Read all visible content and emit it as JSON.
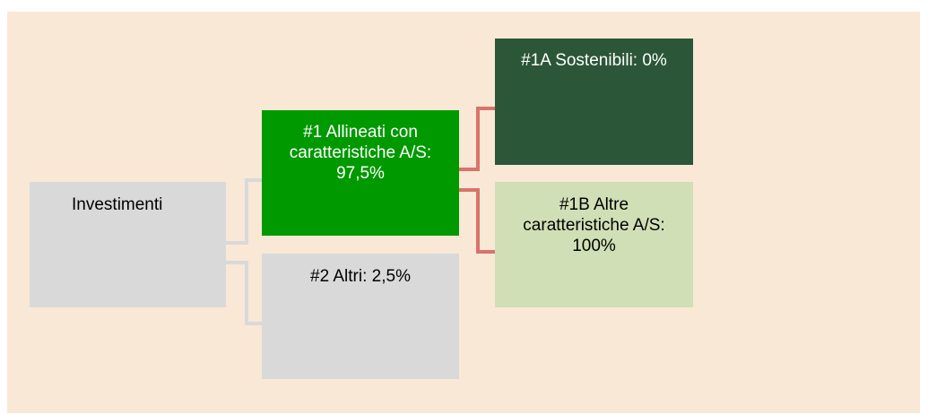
{
  "nodes": [
    {
      "label": "Investimenti"
    },
    {
      "label": "#1 Allineati con caratteristiche A/S: 97,5%"
    },
    {
      "label": "#2 Altri: 2,5%"
    },
    {
      "label": "#1A Sostenibili: 0%"
    },
    {
      "label": "#1B Altre caratteristiche A/S: 100%"
    }
  ]
}
